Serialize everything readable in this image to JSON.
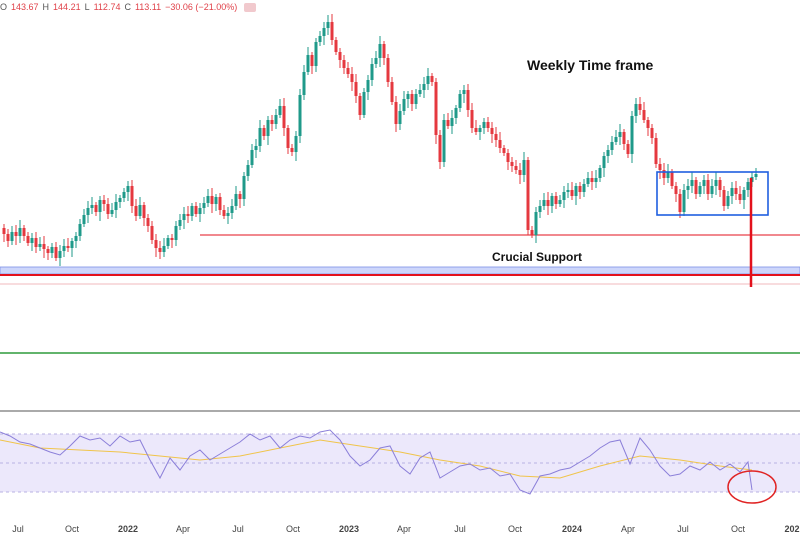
{
  "ohlc": {
    "open_label": "O",
    "open": "143.67",
    "high_label": "H",
    "high": "144.21",
    "low_label": "L",
    "low": "112.74",
    "close_label": "C",
    "close": "113.11",
    "change": "−30.06 (−21.00%)"
  },
  "colors": {
    "up": "#1f9a8a",
    "down": "#e5383f",
    "rsi_line": "#8b7fd9",
    "rsi_ma": "#f0c44a",
    "rsi_band": "#ece8fb",
    "support_band": "#cdd6fb",
    "support_line": "#e3111c",
    "box": "#1f5fe0",
    "green_line": "#2e9b3c",
    "circle": "#e02424"
  },
  "chart_data": {
    "type": "candlestick",
    "annotations": {
      "title": "Weekly Time frame",
      "support_label": "Crucial Support"
    },
    "x_ticks": [
      "Jul",
      "Oct",
      "2022",
      "Apr",
      "Jul",
      "Oct",
      "2023",
      "Apr",
      "Jul",
      "Oct",
      "2024",
      "Apr",
      "Jul",
      "Oct",
      "202"
    ],
    "price_path": [
      [
        0,
        228
      ],
      [
        4,
        234
      ],
      [
        8,
        241
      ],
      [
        12,
        232
      ],
      [
        16,
        236
      ],
      [
        20,
        228
      ],
      [
        24,
        236
      ],
      [
        28,
        243
      ],
      [
        32,
        238
      ],
      [
        36,
        247
      ],
      [
        40,
        244
      ],
      [
        44,
        249
      ],
      [
        48,
        253
      ],
      [
        52,
        247
      ],
      [
        56,
        258
      ],
      [
        60,
        251
      ],
      [
        64,
        246
      ],
      [
        68,
        248
      ],
      [
        72,
        241
      ],
      [
        76,
        236
      ],
      [
        80,
        224
      ],
      [
        84,
        215
      ],
      [
        88,
        208
      ],
      [
        92,
        205
      ],
      [
        96,
        212
      ],
      [
        100,
        200
      ],
      [
        104,
        204
      ],
      [
        108,
        214
      ],
      [
        112,
        210
      ],
      [
        116,
        202
      ],
      [
        120,
        198
      ],
      [
        124,
        192
      ],
      [
        128,
        186
      ],
      [
        132,
        206
      ],
      [
        136,
        216
      ],
      [
        140,
        205
      ],
      [
        144,
        218
      ],
      [
        148,
        226
      ],
      [
        152,
        240
      ],
      [
        156,
        248
      ],
      [
        160,
        252
      ],
      [
        164,
        246
      ],
      [
        168,
        238
      ],
      [
        172,
        240
      ],
      [
        176,
        226
      ],
      [
        180,
        220
      ],
      [
        184,
        214
      ],
      [
        188,
        216
      ],
      [
        192,
        206
      ],
      [
        196,
        214
      ],
      [
        200,
        208
      ],
      [
        204,
        203
      ],
      [
        208,
        196
      ],
      [
        212,
        204
      ],
      [
        216,
        197
      ],
      [
        220,
        210
      ],
      [
        224,
        216
      ],
      [
        228,
        213
      ],
      [
        232,
        206
      ],
      [
        236,
        194
      ],
      [
        240,
        199
      ],
      [
        244,
        176
      ],
      [
        248,
        165
      ],
      [
        252,
        150
      ],
      [
        256,
        146
      ],
      [
        260,
        128
      ],
      [
        264,
        136
      ],
      [
        268,
        120
      ],
      [
        272,
        124
      ],
      [
        276,
        115
      ],
      [
        280,
        106
      ],
      [
        284,
        128
      ],
      [
        288,
        148
      ],
      [
        292,
        152
      ],
      [
        296,
        136
      ],
      [
        300,
        95
      ],
      [
        304,
        72
      ],
      [
        308,
        55
      ],
      [
        312,
        66
      ],
      [
        316,
        42
      ],
      [
        320,
        36
      ],
      [
        324,
        28
      ],
      [
        328,
        22
      ],
      [
        332,
        40
      ],
      [
        336,
        52
      ],
      [
        340,
        60
      ],
      [
        344,
        68
      ],
      [
        348,
        74
      ],
      [
        352,
        82
      ],
      [
        356,
        96
      ],
      [
        360,
        115
      ],
      [
        364,
        92
      ],
      [
        368,
        80
      ],
      [
        372,
        64
      ],
      [
        376,
        58
      ],
      [
        380,
        44
      ],
      [
        384,
        58
      ],
      [
        388,
        82
      ],
      [
        392,
        102
      ],
      [
        396,
        124
      ],
      [
        400,
        111
      ],
      [
        404,
        99
      ],
      [
        408,
        94
      ],
      [
        412,
        104
      ],
      [
        416,
        94
      ],
      [
        420,
        90
      ],
      [
        424,
        84
      ],
      [
        428,
        76
      ],
      [
        432,
        82
      ],
      [
        436,
        135
      ],
      [
        440,
        162
      ],
      [
        444,
        120
      ],
      [
        448,
        126
      ],
      [
        452,
        118
      ],
      [
        456,
        108
      ],
      [
        460,
        94
      ],
      [
        464,
        90
      ],
      [
        468,
        110
      ],
      [
        472,
        128
      ],
      [
        476,
        132
      ],
      [
        480,
        128
      ],
      [
        484,
        122
      ],
      [
        488,
        128
      ],
      [
        492,
        134
      ],
      [
        496,
        140
      ],
      [
        500,
        148
      ],
      [
        504,
        153
      ],
      [
        508,
        162
      ],
      [
        512,
        166
      ],
      [
        516,
        170
      ],
      [
        520,
        175
      ],
      [
        524,
        160
      ],
      [
        528,
        230
      ],
      [
        532,
        235
      ],
      [
        536,
        212
      ],
      [
        540,
        206
      ],
      [
        544,
        200
      ],
      [
        548,
        206
      ],
      [
        552,
        196
      ],
      [
        556,
        204
      ],
      [
        560,
        200
      ],
      [
        564,
        192
      ],
      [
        568,
        190
      ],
      [
        572,
        196
      ],
      [
        576,
        186
      ],
      [
        580,
        192
      ],
      [
        584,
        184
      ],
      [
        588,
        178
      ],
      [
        592,
        182
      ],
      [
        596,
        178
      ],
      [
        600,
        168
      ],
      [
        604,
        156
      ],
      [
        608,
        150
      ],
      [
        612,
        142
      ],
      [
        616,
        137
      ],
      [
        620,
        132
      ],
      [
        624,
        144
      ],
      [
        628,
        154
      ],
      [
        632,
        116
      ],
      [
        636,
        104
      ],
      [
        640,
        110
      ],
      [
        644,
        120
      ],
      [
        648,
        128
      ],
      [
        652,
        138
      ],
      [
        656,
        164
      ],
      [
        660,
        170
      ],
      [
        664,
        178
      ],
      [
        668,
        172
      ],
      [
        672,
        186
      ],
      [
        676,
        194
      ],
      [
        680,
        212
      ],
      [
        684,
        190
      ],
      [
        688,
        186
      ],
      [
        692,
        180
      ],
      [
        696,
        194
      ],
      [
        700,
        186
      ],
      [
        704,
        180
      ],
      [
        708,
        194
      ],
      [
        712,
        186
      ],
      [
        716,
        180
      ],
      [
        720,
        190
      ],
      [
        724,
        206
      ],
      [
        728,
        196
      ],
      [
        732,
        188
      ],
      [
        736,
        194
      ],
      [
        740,
        200
      ],
      [
        744,
        190
      ],
      [
        748,
        182
      ],
      [
        752,
        177
      ],
      [
        756,
        174
      ]
    ],
    "rsi_path": [
      [
        0,
        432
      ],
      [
        10,
        436
      ],
      [
        20,
        442
      ],
      [
        30,
        444
      ],
      [
        40,
        448
      ],
      [
        50,
        452
      ],
      [
        60,
        455
      ],
      [
        70,
        446
      ],
      [
        80,
        436
      ],
      [
        90,
        440
      ],
      [
        100,
        438
      ],
      [
        110,
        446
      ],
      [
        120,
        436
      ],
      [
        130,
        442
      ],
      [
        140,
        440
      ],
      [
        150,
        460
      ],
      [
        160,
        478
      ],
      [
        170,
        458
      ],
      [
        180,
        470
      ],
      [
        190,
        456
      ],
      [
        200,
        450
      ],
      [
        210,
        460
      ],
      [
        220,
        454
      ],
      [
        230,
        448
      ],
      [
        240,
        442
      ],
      [
        250,
        434
      ],
      [
        260,
        440
      ],
      [
        270,
        436
      ],
      [
        280,
        448
      ],
      [
        290,
        440
      ],
      [
        300,
        436
      ],
      [
        310,
        438
      ],
      [
        320,
        432
      ],
      [
        330,
        430
      ],
      [
        340,
        440
      ],
      [
        350,
        456
      ],
      [
        360,
        466
      ],
      [
        370,
        460
      ],
      [
        380,
        448
      ],
      [
        390,
        446
      ],
      [
        400,
        466
      ],
      [
        410,
        474
      ],
      [
        420,
        458
      ],
      [
        430,
        452
      ],
      [
        440,
        478
      ],
      [
        450,
        472
      ],
      [
        460,
        466
      ],
      [
        470,
        464
      ],
      [
        480,
        470
      ],
      [
        490,
        468
      ],
      [
        500,
        476
      ],
      [
        510,
        474
      ],
      [
        520,
        490
      ],
      [
        530,
        494
      ],
      [
        540,
        476
      ],
      [
        550,
        474
      ],
      [
        560,
        470
      ],
      [
        570,
        468
      ],
      [
        580,
        462
      ],
      [
        590,
        456
      ],
      [
        600,
        448
      ],
      [
        610,
        442
      ],
      [
        620,
        440
      ],
      [
        630,
        464
      ],
      [
        640,
        438
      ],
      [
        650,
        450
      ],
      [
        660,
        466
      ],
      [
        670,
        476
      ],
      [
        680,
        474
      ],
      [
        690,
        466
      ],
      [
        700,
        470
      ],
      [
        710,
        462
      ],
      [
        720,
        470
      ],
      [
        730,
        464
      ],
      [
        740,
        472
      ],
      [
        748,
        462
      ],
      [
        752,
        490
      ]
    ],
    "rsi_ma_path": [
      [
        0,
        440
      ],
      [
        40,
        448
      ],
      [
        80,
        450
      ],
      [
        120,
        452
      ],
      [
        160,
        456
      ],
      [
        200,
        460
      ],
      [
        240,
        456
      ],
      [
        280,
        448
      ],
      [
        320,
        440
      ],
      [
        360,
        446
      ],
      [
        400,
        452
      ],
      [
        440,
        460
      ],
      [
        480,
        466
      ],
      [
        520,
        476
      ],
      [
        560,
        478
      ],
      [
        600,
        466
      ],
      [
        640,
        456
      ],
      [
        680,
        460
      ],
      [
        720,
        466
      ],
      [
        752,
        470
      ]
    ]
  }
}
